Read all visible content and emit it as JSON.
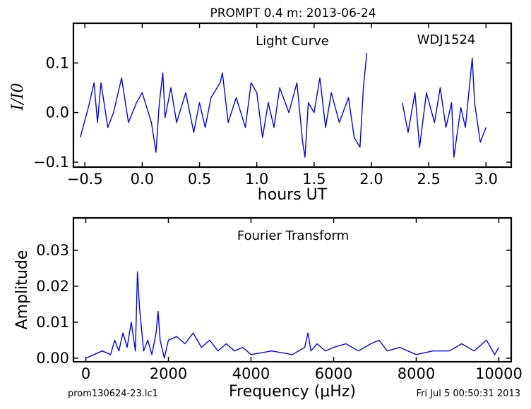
{
  "figure": {
    "title": "PROMPT 0.4 m:  2013-06-24",
    "footer_left": "prom130624-23.lc1",
    "footer_right": "Fri Jul  5 00:50:31 2013"
  },
  "colors": {
    "series": "#0000ff",
    "axes": "#000000",
    "background": "#ffffff"
  },
  "chart_data": [
    {
      "type": "line",
      "annotation_left": "Light Curve",
      "annotation_right": "WDJ1524",
      "xlabel": "hours UT",
      "ylabel": "I/I0",
      "xlim": [
        -0.6,
        3.22
      ],
      "ylim": [
        -0.11,
        0.18
      ],
      "xticks": [
        -0.5,
        0.0,
        0.5,
        1.0,
        1.5,
        2.0,
        2.5,
        3.0
      ],
      "xtick_labels": [
        "−0.5",
        "0.0",
        "0.5",
        "1.0",
        "1.5",
        "2.0",
        "2.5",
        "3.0"
      ],
      "yticks": [
        -0.1,
        0.0,
        0.1
      ],
      "ytick_labels": [
        "−0.1",
        "0.0",
        "0.1"
      ],
      "grid": false,
      "series": [
        {
          "x": [
            -0.54,
            -0.47,
            -0.42,
            -0.39,
            -0.36,
            -0.3,
            -0.25,
            -0.18,
            -0.12,
            -0.05,
            0.0,
            0.08,
            0.12,
            0.15,
            0.18,
            0.2,
            0.25,
            0.3,
            0.38,
            0.45,
            0.5,
            0.55,
            0.6,
            0.68,
            0.7,
            0.75,
            0.82,
            0.9,
            0.95,
            1.0,
            1.05,
            1.1,
            1.15,
            1.2,
            1.28,
            1.35,
            1.4,
            1.42,
            1.45,
            1.5,
            1.55,
            1.6,
            1.65,
            1.72,
            1.8,
            1.85,
            1.9,
            1.93,
            1.96
          ],
          "y": [
            -0.05,
            0.01,
            0.06,
            -0.02,
            0.06,
            -0.03,
            0.0,
            0.07,
            -0.02,
            0.02,
            0.04,
            -0.02,
            -0.08,
            0.02,
            0.08,
            -0.01,
            0.05,
            -0.02,
            0.04,
            -0.04,
            0.02,
            -0.03,
            0.03,
            0.06,
            0.08,
            -0.02,
            0.03,
            -0.03,
            0.06,
            0.04,
            -0.05,
            0.02,
            -0.03,
            0.05,
            0.0,
            0.06,
            -0.06,
            -0.09,
            0.02,
            0.0,
            0.07,
            -0.03,
            0.04,
            -0.02,
            0.03,
            -0.05,
            -0.07,
            0.05,
            0.12
          ]
        },
        {
          "x": [
            2.27,
            2.32,
            2.38,
            2.42,
            2.48,
            2.55,
            2.6,
            2.65,
            2.7,
            2.72,
            2.78,
            2.82,
            2.88,
            2.9,
            2.95,
            3.0
          ],
          "y": [
            0.02,
            -0.04,
            0.04,
            -0.07,
            0.04,
            -0.02,
            0.05,
            -0.03,
            0.02,
            -0.09,
            0.01,
            -0.03,
            0.11,
            0.02,
            -0.06,
            -0.03
          ]
        }
      ]
    },
    {
      "type": "line",
      "annotation": "Fourier Transform",
      "xlabel": "Frequency (μHz)",
      "ylabel": "Amplitude",
      "xlim": [
        -300,
        10300
      ],
      "ylim": [
        -0.001,
        0.039
      ],
      "xticks": [
        0,
        2000,
        4000,
        6000,
        8000,
        10000
      ],
      "xtick_labels": [
        "0",
        "2000",
        "4000",
        "6000",
        "8000",
        "10000"
      ],
      "yticks": [
        0.0,
        0.01,
        0.02,
        0.03
      ],
      "ytick_labels": [
        "0.00",
        "0.01",
        "0.02",
        "0.03"
      ],
      "grid": false,
      "series": [
        {
          "x": [
            0,
            200,
            400,
            600,
            700,
            800,
            900,
            1000,
            1100,
            1200,
            1250,
            1300,
            1400,
            1500,
            1600,
            1700,
            1750,
            1800,
            1900,
            2000,
            2200,
            2400,
            2600,
            2800,
            3000,
            3200,
            3400,
            3600,
            3800,
            4000,
            4500,
            5000,
            5300,
            5380,
            5450,
            5600,
            5800,
            6000,
            6300,
            6600,
            6900,
            7100,
            7300,
            7600,
            8000,
            8400,
            8800,
            9100,
            9400,
            9700,
            9900,
            10000
          ],
          "y": [
            0.0,
            0.001,
            0.002,
            0.001,
            0.005,
            0.002,
            0.007,
            0.003,
            0.01,
            0.002,
            0.024,
            0.014,
            0.002,
            0.005,
            0.001,
            0.007,
            0.013,
            0.005,
            0.0,
            0.005,
            0.006,
            0.004,
            0.007,
            0.003,
            0.005,
            0.002,
            0.004,
            0.002,
            0.003,
            0.001,
            0.002,
            0.001,
            0.003,
            0.007,
            0.002,
            0.004,
            0.002,
            0.003,
            0.004,
            0.002,
            0.004,
            0.005,
            0.002,
            0.003,
            0.001,
            0.002,
            0.002,
            0.004,
            0.002,
            0.005,
            0.001,
            0.003
          ]
        }
      ]
    }
  ]
}
